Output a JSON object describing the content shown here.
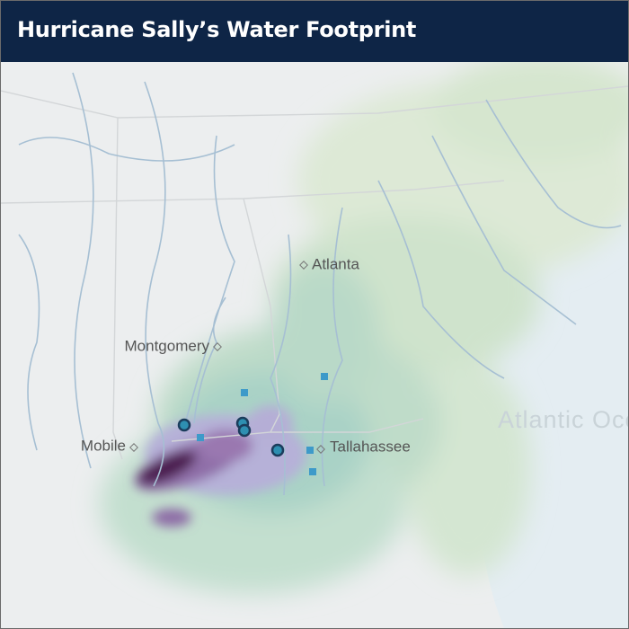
{
  "header": {
    "title": "Hurricane Sally’s Water Footprint"
  },
  "map": {
    "labels": [
      "Atlanta",
      "Montgomery",
      "Mobile",
      "Tallahassee",
      "Atlantic Ocean"
    ]
  }
}
